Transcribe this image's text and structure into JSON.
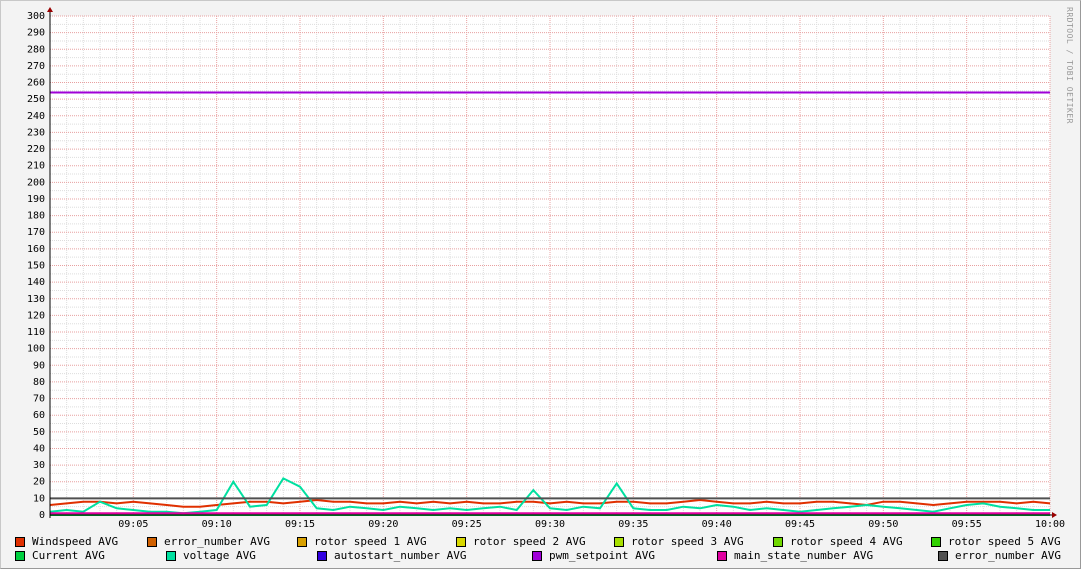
{
  "watermark": "RRDTOOL / TOBI OETIKER",
  "chart_data": {
    "type": "line",
    "ylim": [
      0,
      300
    ],
    "yticks": [
      0,
      10,
      20,
      30,
      40,
      50,
      60,
      70,
      80,
      90,
      100,
      110,
      120,
      130,
      140,
      150,
      160,
      170,
      180,
      190,
      200,
      210,
      220,
      230,
      240,
      250,
      260,
      270,
      280,
      290,
      300
    ],
    "xticks": [
      "09:05",
      "09:10",
      "09:15",
      "09:20",
      "09:25",
      "09:30",
      "09:35",
      "09:40",
      "09:45",
      "09:50",
      "09:55",
      "10:00"
    ],
    "x_range": [
      "09:00",
      "10:00"
    ],
    "grid": true,
    "legend_placement": "bottom",
    "series": [
      {
        "name": "Windspeed AVG",
        "color": "#e03000",
        "values": [
          6,
          7,
          8,
          8,
          7,
          8,
          7,
          6,
          5,
          5,
          6,
          7,
          8,
          8,
          7,
          8,
          9,
          8,
          8,
          7,
          7,
          8,
          7,
          8,
          7,
          8,
          7,
          7,
          8,
          8,
          7,
          8,
          7,
          7,
          8,
          8,
          7,
          7,
          8,
          9,
          8,
          7,
          7,
          8,
          7,
          7,
          8,
          8,
          7,
          6,
          8,
          8,
          7,
          6,
          7,
          8,
          8,
          8,
          7,
          8,
          7
        ]
      },
      {
        "name": "error_number AVG",
        "color": "#d06000",
        "values": null
      },
      {
        "name": "rotor speed 1 AVG",
        "color": "#d8a000",
        "values": null
      },
      {
        "name": "rotor speed 2 AVG",
        "color": "#d8d800",
        "values": null
      },
      {
        "name": "rotor speed 3 AVG",
        "color": "#a8e000",
        "values": null
      },
      {
        "name": "rotor speed 4 AVG",
        "color": "#70d800",
        "values": null
      },
      {
        "name": "rotor speed 5 AVG",
        "color": "#30d000",
        "values": null
      },
      {
        "name": "Current AVG",
        "color": "#00d040",
        "values": [
          0,
          0,
          0,
          0,
          0,
          0,
          0,
          0,
          0,
          0,
          0,
          0,
          0,
          0,
          0,
          0,
          0,
          0,
          0,
          0,
          0,
          0,
          0,
          0,
          0,
          0,
          0,
          0,
          0,
          0,
          0,
          0,
          0,
          0,
          0,
          0,
          0,
          0,
          0,
          0,
          0,
          0,
          0,
          0,
          0,
          0,
          0,
          0,
          0,
          0,
          0,
          0,
          0,
          0,
          0,
          0,
          0,
          0,
          0,
          0,
          0
        ]
      },
      {
        "name": "voltage AVG",
        "color": "#00e0a0",
        "values": [
          2,
          3,
          2,
          8,
          4,
          3,
          2,
          2,
          1,
          2,
          3,
          20,
          5,
          6,
          22,
          17,
          4,
          3,
          5,
          4,
          3,
          5,
          4,
          3,
          4,
          3,
          4,
          5,
          3,
          15,
          4,
          3,
          5,
          4,
          19,
          4,
          3,
          3,
          5,
          4,
          6,
          5,
          3,
          4,
          3,
          2,
          3,
          4,
          5,
          6,
          5,
          4,
          3,
          2,
          4,
          6,
          7,
          5,
          4,
          3,
          3
        ]
      },
      {
        "name": "autostart_number AVG",
        "color": "#3000e0",
        "values": null
      },
      {
        "name": "pwm_setpoint AVG",
        "color": "#a000d8",
        "values": [
          254,
          254
        ]
      },
      {
        "name": "main_state_number AVG",
        "color": "#e000a0",
        "values": [
          1,
          1
        ]
      },
      {
        "name": "error_number AVG",
        "color": "#505050",
        "values": [
          10,
          10
        ]
      }
    ]
  }
}
